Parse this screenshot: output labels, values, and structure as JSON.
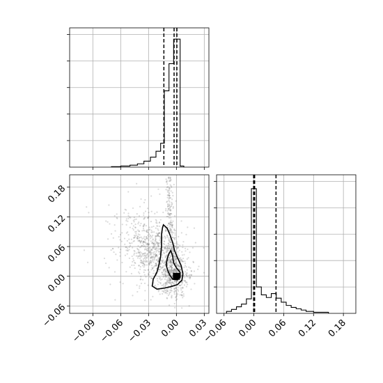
{
  "chart_data": [
    {
      "type": "histogram",
      "panel": "top-left",
      "xlim": [
        -0.115,
        0.035
      ],
      "ylim": [
        0,
        1.05
      ],
      "y_tick_labels_shown": false,
      "grid": true,
      "bins": [
        {
          "x0": -0.07,
          "x1": -0.06,
          "v": 0.004
        },
        {
          "x0": -0.06,
          "x1": -0.05,
          "v": 0.008
        },
        {
          "x0": -0.05,
          "x1": -0.042,
          "v": 0.015
        },
        {
          "x0": -0.042,
          "x1": -0.035,
          "v": 0.025
        },
        {
          "x0": -0.035,
          "x1": -0.028,
          "v": 0.045
        },
        {
          "x0": -0.028,
          "x1": -0.022,
          "v": 0.075
        },
        {
          "x0": -0.022,
          "x1": -0.017,
          "v": 0.12
        },
        {
          "x0": -0.017,
          "x1": -0.013,
          "v": 0.18
        },
        {
          "x0": -0.013,
          "x1": -0.008,
          "v": 0.575
        },
        {
          "x0": -0.008,
          "x1": -0.003,
          "v": 0.78
        },
        {
          "x0": -0.003,
          "x1": 0.004,
          "v": 0.965
        },
        {
          "x0": 0.004,
          "x1": 0.008,
          "v": 0.008
        }
      ],
      "quantile_lines": [
        -0.0135,
        -0.0025,
        0.0005
      ]
    },
    {
      "type": "scatter",
      "panel": "bottom-left",
      "xlim": [
        -0.115,
        0.035
      ],
      "ylim": [
        -0.075,
        0.205
      ],
      "x_ticks": [
        -0.09,
        -0.06,
        -0.03,
        0.0,
        0.03
      ],
      "x_tick_labels": [
        "−0.09",
        "−0.06",
        "−0.03",
        "0.00",
        "0.03"
      ],
      "y_ticks": [
        -0.06,
        0.0,
        0.06,
        0.12,
        0.18
      ],
      "y_tick_labels": [
        "−0.06",
        "0.00",
        "0.06",
        "0.12",
        "0.18"
      ],
      "grid": true,
      "points_description": "semi-transparent gray samples",
      "contour_outer": [
        [
          -0.014,
          0.104
        ],
        [
          -0.01,
          0.097
        ],
        [
          -0.007,
          0.084
        ],
        [
          -0.004,
          0.068
        ],
        [
          -0.002,
          0.052
        ],
        [
          0.001,
          0.038
        ],
        [
          0.005,
          0.022
        ],
        [
          0.007,
          0.005
        ],
        [
          0.006,
          -0.008
        ],
        [
          0.001,
          -0.017
        ],
        [
          -0.006,
          -0.021
        ],
        [
          -0.013,
          -0.024
        ],
        [
          -0.021,
          -0.026
        ],
        [
          -0.026,
          -0.02
        ],
        [
          -0.025,
          -0.006
        ],
        [
          -0.021,
          0.008
        ],
        [
          -0.019,
          0.022
        ],
        [
          -0.017,
          0.04
        ],
        [
          -0.016,
          0.062
        ],
        [
          -0.016,
          0.085
        ],
        [
          -0.015,
          0.098
        ]
      ],
      "contour_inner": [
        [
          -0.006,
          0.052
        ],
        [
          -0.004,
          0.04
        ],
        [
          -0.003,
          0.027
        ],
        [
          0.0,
          0.017
        ],
        [
          0.004,
          0.008
        ],
        [
          0.004,
          -0.002
        ],
        [
          0.001,
          -0.007
        ],
        [
          -0.004,
          -0.006
        ],
        [
          -0.007,
          0.002
        ],
        [
          -0.009,
          0.01
        ],
        [
          -0.011,
          0.022
        ],
        [
          -0.01,
          0.035
        ],
        [
          -0.008,
          0.046
        ]
      ],
      "center_marker": [
        0.0,
        0.0
      ]
    },
    {
      "type": "histogram",
      "panel": "bottom-right",
      "xlim": [
        -0.075,
        0.205
      ],
      "ylim": [
        0,
        1.05
      ],
      "x_ticks": [
        -0.06,
        0.0,
        0.06,
        0.12,
        0.18
      ],
      "x_tick_labels": [
        "−0.06",
        "0.00",
        "0.06",
        "0.12",
        "0.18"
      ],
      "y_tick_labels_shown": false,
      "grid": true,
      "bins": [
        {
          "x0": -0.055,
          "x1": -0.045,
          "v": 0.015
        },
        {
          "x0": -0.045,
          "x1": -0.035,
          "v": 0.03
        },
        {
          "x0": -0.035,
          "x1": -0.025,
          "v": 0.05
        },
        {
          "x0": -0.025,
          "x1": -0.015,
          "v": 0.07
        },
        {
          "x0": -0.015,
          "x1": -0.005,
          "v": 0.11
        },
        {
          "x0": -0.005,
          "x1": 0.005,
          "v": 0.945
        },
        {
          "x0": 0.005,
          "x1": 0.015,
          "v": 0.2
        },
        {
          "x0": 0.015,
          "x1": 0.025,
          "v": 0.14
        },
        {
          "x0": 0.025,
          "x1": 0.035,
          "v": 0.12
        },
        {
          "x0": 0.035,
          "x1": 0.045,
          "v": 0.15
        },
        {
          "x0": 0.045,
          "x1": 0.055,
          "v": 0.115
        },
        {
          "x0": 0.055,
          "x1": 0.065,
          "v": 0.085
        },
        {
          "x0": 0.065,
          "x1": 0.075,
          "v": 0.06
        },
        {
          "x0": 0.075,
          "x1": 0.085,
          "v": 0.045
        },
        {
          "x0": 0.085,
          "x1": 0.095,
          "v": 0.035
        },
        {
          "x0": 0.095,
          "x1": 0.105,
          "v": 0.025
        },
        {
          "x0": 0.105,
          "x1": 0.12,
          "v": 0.015
        },
        {
          "x0": 0.12,
          "x1": 0.15,
          "v": 0.008
        }
      ],
      "quantile_lines": [
        -0.0005,
        0.0015,
        0.0445
      ]
    }
  ]
}
